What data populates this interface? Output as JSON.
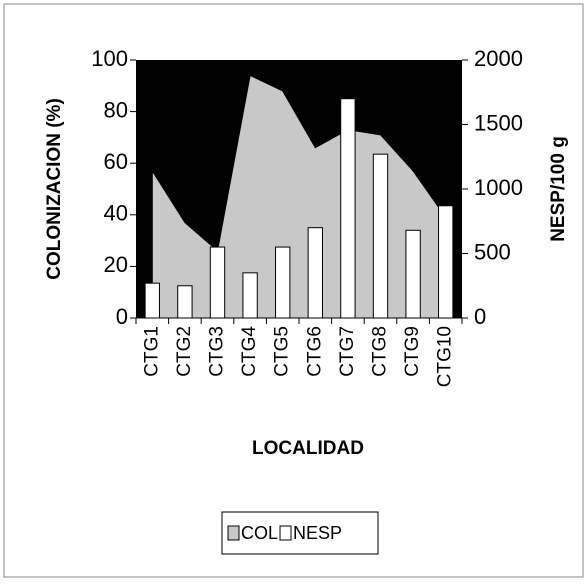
{
  "chart_data": {
    "type": "combo",
    "categories": [
      "CTG1",
      "CTG2",
      "CTG3",
      "CTG4",
      "CTG5",
      "CTG6",
      "CTG7",
      "CTG8",
      "CTG9",
      "CTG10"
    ],
    "series": [
      {
        "name": "COL",
        "type": "area",
        "axis": "y",
        "color": "#c8c8c8",
        "values": [
          57,
          37,
          26,
          94,
          88,
          66,
          73,
          71,
          57,
          39
        ]
      },
      {
        "name": "NESP",
        "type": "bar",
        "axis": "y2",
        "color": "#ffffff",
        "values": [
          270,
          250,
          550,
          350,
          550,
          700,
          1700,
          1270,
          680,
          870
        ]
      }
    ],
    "xlabel": "LOCALIDAD",
    "ylabel": "COLONIZACION (%)",
    "y2label": "NESP/100 g",
    "ylim": [
      0,
      100
    ],
    "yticks": [
      0,
      20,
      40,
      60,
      80,
      100
    ],
    "y2lim": [
      0,
      2000
    ],
    "y2ticks": [
      0,
      500,
      1000,
      1500,
      2000
    ],
    "plot_background": "#000000",
    "legend": "bottom"
  }
}
